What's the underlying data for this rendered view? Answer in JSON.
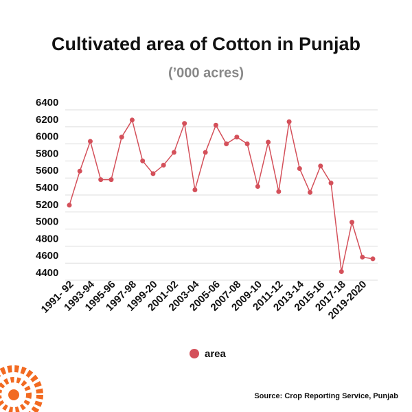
{
  "chart_data": {
    "type": "line",
    "title": "Cultivated area of Cotton in Punjab",
    "subtitle": "(’000 acres)",
    "source": "Source: Crop Reporting Service, Punjab",
    "categories": [
      "1991- 92",
      null,
      "1993-94",
      null,
      "1995-96",
      null,
      "1997-98",
      null,
      "1999-20",
      null,
      "2001-02",
      null,
      "2003-04",
      null,
      "2005-06",
      null,
      "2007-08",
      null,
      "2009-10",
      null,
      "2011-12",
      null,
      "2013-14",
      null,
      "2015-16",
      null,
      "2017-18",
      null,
      "2019-2020",
      null
    ],
    "series": [
      {
        "name": "area",
        "color": "#d4505a",
        "values": [
          5200,
          5600,
          5950,
          5500,
          5500,
          6000,
          6200,
          5720,
          5570,
          5670,
          5820,
          6160,
          5380,
          5820,
          6140,
          5920,
          6000,
          5920,
          5420,
          5940,
          5360,
          6180,
          5630,
          5350,
          5660,
          5460,
          4420,
          5000,
          4590,
          4570
        ]
      }
    ],
    "ylim": [
      4400,
      6400
    ],
    "yticks": [
      4400,
      4600,
      4800,
      5000,
      5200,
      5400,
      5600,
      5800,
      6000,
      6200,
      6400
    ],
    "grid": true,
    "legend": "bottom"
  }
}
